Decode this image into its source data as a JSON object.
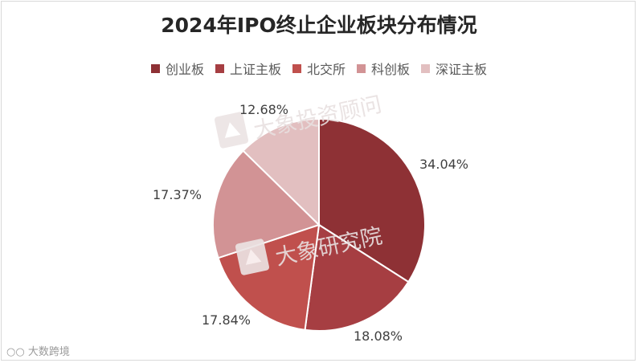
{
  "chart_data": {
    "type": "pie",
    "title": "2024年IPO终止企业板块分布情况",
    "legend_position": "top",
    "slices": [
      {
        "name": "创业板",
        "value": 34.04,
        "label": "34.04%",
        "color": "#8e3135"
      },
      {
        "name": "上证主板",
        "value": 18.08,
        "label": "18.08%",
        "color": "#a63e42"
      },
      {
        "name": "北交所",
        "value": 17.84,
        "label": "17.84%",
        "color": "#c0504d"
      },
      {
        "name": "科创板",
        "value": 17.37,
        "label": "17.37%",
        "color": "#d29395"
      },
      {
        "name": "深证主板",
        "value": 12.68,
        "label": "12.68%",
        "color": "#e2bfc0"
      }
    ]
  },
  "watermarks": {
    "top": "大象投资顾问",
    "middle": "大象研究院"
  },
  "source_logo": "大数跨境"
}
